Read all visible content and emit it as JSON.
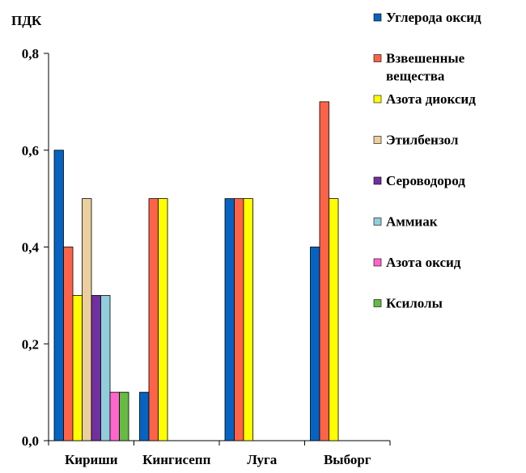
{
  "chart_data": {
    "type": "bar",
    "title": "",
    "ylabel": "ПДК",
    "xlabel": "",
    "ylim": [
      0,
      0.8
    ],
    "yticks": [
      "0,0",
      "0,2",
      "0,4",
      "0,6",
      "0,8"
    ],
    "ytick_values": [
      0,
      0.2,
      0.4,
      0.6,
      0.8
    ],
    "grid": false,
    "legend_position": "right",
    "categories": [
      "Кириши",
      "Кингисепп",
      "Луга",
      "Выборг"
    ],
    "series": [
      {
        "name": "Углерода оксид",
        "color": "#0563C1",
        "values": [
          0.6,
          0.1,
          0.5,
          0.4
        ]
      },
      {
        "name": "Взвешенные вещества",
        "color": "#FF6347",
        "values": [
          0.4,
          0.5,
          0.5,
          0.7
        ]
      },
      {
        "name": "Азота диоксид",
        "color": "#FFFF00",
        "values": [
          0.3,
          0.5,
          0.5,
          0.5
        ]
      },
      {
        "name": "Этилбензол",
        "color": "#EBCF9E",
        "values": [
          0.5,
          null,
          null,
          null
        ]
      },
      {
        "name": "Сероводород",
        "color": "#7030A0",
        "values": [
          0.3,
          null,
          null,
          null
        ]
      },
      {
        "name": "Аммиак",
        "color": "#92CDDC",
        "values": [
          0.3,
          null,
          null,
          null
        ]
      },
      {
        "name": "Азота оксид",
        "color": "#FF66CC",
        "values": [
          0.1,
          null,
          null,
          null
        ]
      },
      {
        "name": "Ксилолы",
        "color": "#66BB44",
        "values": [
          0.1,
          null,
          null,
          null
        ]
      }
    ]
  }
}
